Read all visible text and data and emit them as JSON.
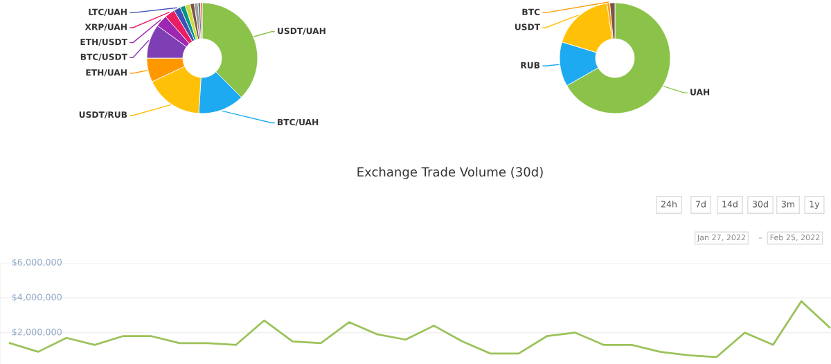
{
  "chart_data": [
    {
      "type": "donut",
      "categories": [
        "USDT/UAH",
        "BTC/UAH",
        "USDT/RUB",
        "ETH/UAH",
        "BTC/USDT",
        "ETH/USDT",
        "XRP/UAH",
        "LTC/UAH",
        null,
        null,
        null,
        null,
        null,
        null
      ],
      "values": [
        37.5,
        13.5,
        17,
        7,
        10,
        3.5,
        3,
        2,
        1.5,
        1.5,
        1.2,
        1.1,
        0.7,
        0.5
      ],
      "colors": [
        "#8bc34a",
        "#1eaaf1",
        "#ffc107",
        "#ff9800",
        "#7e3fb5",
        "#9c27b0",
        "#e91e63",
        "#3f51b5",
        "#009688",
        "#cddc39",
        "#795548",
        "#9e9e9e",
        "#607d8b",
        "#ff5722"
      ]
    },
    {
      "type": "donut",
      "categories": [
        "UAH",
        "RUB",
        "USDT",
        "BTC",
        null
      ],
      "values": [
        66.7,
        13,
        18,
        0.8,
        1.5
      ],
      "colors": [
        "#8bc34a",
        "#1eaaf1",
        "#ffc107",
        "#ff9800",
        "#795548"
      ]
    },
    {
      "type": "line",
      "title": "Exchange Trade Volume (30d)",
      "annotations": [
        "24h",
        "7d",
        "14d",
        "30d",
        "3m",
        "1y",
        "Jan 27, 2022",
        "–",
        "Feb 25, 2022"
      ],
      "categories": [
        null,
        null,
        null,
        null,
        null,
        null,
        null,
        null,
        null,
        null,
        null,
        null,
        null,
        null,
        null,
        null,
        null,
        null,
        null,
        null,
        null,
        null,
        null,
        null,
        null,
        null,
        null,
        null,
        null,
        null
      ],
      "series": [
        {
          "color": "#9cc25a",
          "values": [
            1400000,
            900000,
            1700000,
            1300000,
            1800000,
            1800000,
            1400000,
            1400000,
            1300000,
            2700000,
            1500000,
            1400000,
            2600000,
            1900000,
            1600000,
            2400000,
            1500000,
            800000,
            800000,
            1800000,
            2000000,
            1300000,
            1300000,
            900000,
            700000,
            600000,
            2000000,
            1300000,
            3800000,
            2300000
          ]
        }
      ],
      "ylim": [
        200000,
        6000000
      ],
      "yticks": [
        {
          "value": 2000000,
          "label": "$2,000,000"
        },
        {
          "value": 4000000,
          "label": "$4,000,000"
        },
        {
          "value": 6000000,
          "label": "$6,000,000"
        }
      ],
      "grid": "y",
      "tick_labels": "y",
      "marker": "none",
      "line_style": "solid"
    }
  ]
}
